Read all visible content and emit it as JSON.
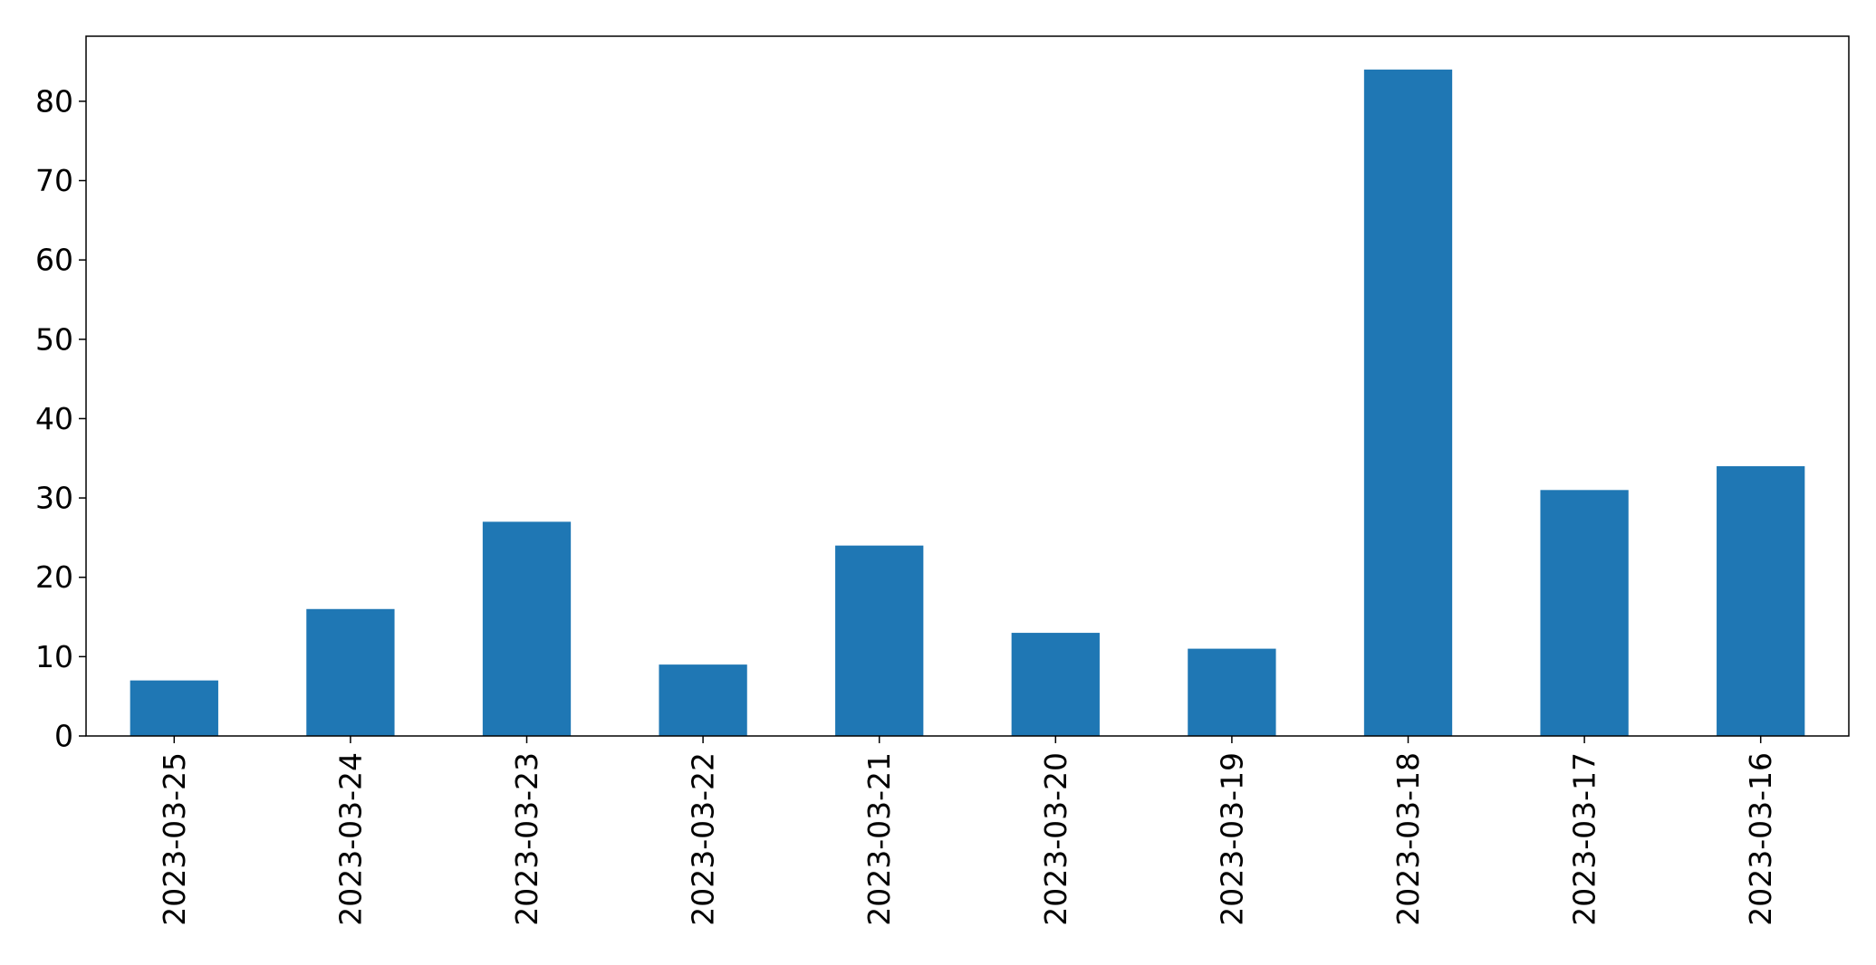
{
  "chart_data": {
    "type": "bar",
    "title": "",
    "xlabel": "",
    "ylabel": "",
    "categories": [
      "2023-03-25",
      "2023-03-24",
      "2023-03-23",
      "2023-03-22",
      "2023-03-21",
      "2023-03-20",
      "2023-03-19",
      "2023-03-18",
      "2023-03-17",
      "2023-03-16"
    ],
    "values": [
      7,
      16,
      27,
      9,
      24,
      13,
      11,
      84,
      31,
      34
    ],
    "ylim": [
      0,
      88.2
    ],
    "yticks": [
      0,
      10,
      20,
      30,
      40,
      50,
      60,
      70,
      80
    ],
    "grid": false,
    "legend": "none",
    "bar_color": "#1f77b4",
    "axis_color": "#000000",
    "background_color": "#ffffff"
  }
}
